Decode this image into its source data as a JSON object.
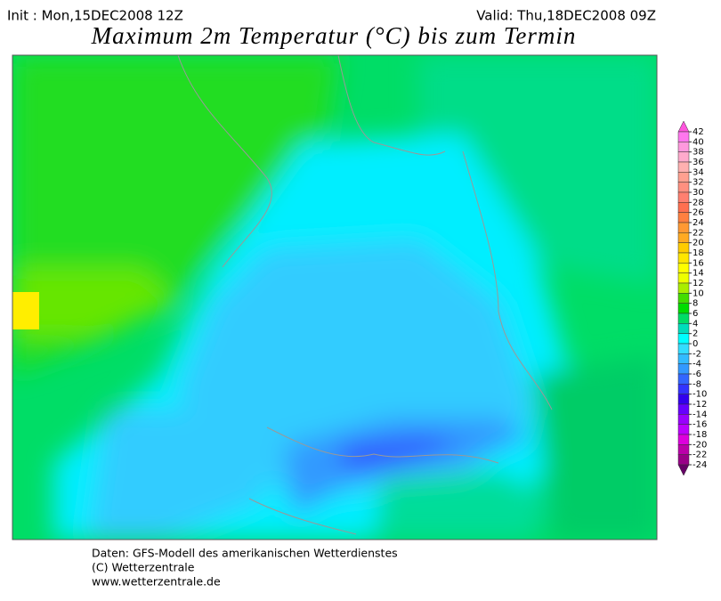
{
  "header": {
    "init": "Init : Mon,15DEC2008 12Z",
    "valid": "Valid: Thu,18DEC2008 09Z",
    "title": "Maximum 2m Temperatur (°C) bis zum Termin"
  },
  "colorbar": {
    "ticks": [
      42,
      40,
      38,
      36,
      34,
      32,
      30,
      28,
      26,
      24,
      22,
      20,
      18,
      16,
      14,
      12,
      10,
      8,
      6,
      4,
      2,
      0,
      -2,
      -4,
      -6,
      -8,
      -10,
      -12,
      -14,
      -16,
      -18,
      -20,
      -22,
      -24
    ],
    "colors": [
      "#ff55dd",
      "#ff77ee",
      "#ff99dd",
      "#ffaacc",
      "#ffb0b0",
      "#ffa090",
      "#ff9080",
      "#ff8070",
      "#ff7050",
      "#ff8040",
      "#ff9933",
      "#ffaa22",
      "#ffcc00",
      "#ffe600",
      "#ffff00",
      "#eeff00",
      "#aaee00",
      "#44dd00",
      "#00dd00",
      "#00dd66",
      "#00ddbb",
      "#00ffff",
      "#33ddff",
      "#33bbff",
      "#3399ff",
      "#3366ff",
      "#3333ff",
      "#3300ee",
      "#6600ff",
      "#9900ff",
      "#bb00ff",
      "#dd00dd",
      "#bb00aa",
      "#990088",
      "#660066"
    ]
  },
  "footer": {
    "line1": "Daten: GFS-Modell des amerikanischen Wetterdienstes",
    "line2": "(C) Wetterzentrale",
    "line3": "www.wetterzentrale.de"
  }
}
